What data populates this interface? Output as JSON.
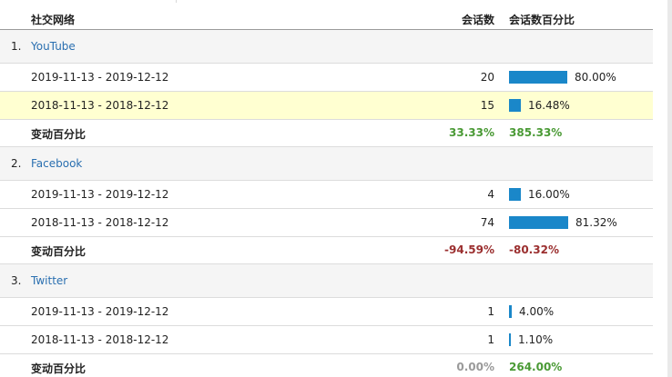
{
  "header": {
    "network": "社交网络",
    "sessions": "会话数",
    "percent": "会话数百分比"
  },
  "colors": {
    "bar": "#1a87c9",
    "link": "#2a6fb0",
    "positive": "#4a9a35",
    "negative": "#9b2f2f",
    "neutral": "#9a9a9a",
    "highlight": "#ffffd1"
  },
  "groups": [
    {
      "index": "1.",
      "name": "YouTube",
      "rows": [
        {
          "date": "2019-11-13 - 2019-12-12",
          "sessions": "20",
          "share": 0.8,
          "pct": "80.00%"
        },
        {
          "date": "2018-11-13 - 2018-12-12",
          "sessions": "15",
          "share": 0.1648,
          "pct": "16.48%"
        }
      ],
      "change": {
        "label": "变动百分比",
        "sessions": "33.33%",
        "sessions_sign": "pos",
        "pct": "385.33%",
        "pct_sign": "pos"
      }
    },
    {
      "index": "2.",
      "name": "Facebook",
      "rows": [
        {
          "date": "2019-11-13 - 2019-12-12",
          "sessions": "4",
          "share": 0.16,
          "pct": "16.00%"
        },
        {
          "date": "2018-11-13 - 2018-12-12",
          "sessions": "74",
          "share": 0.8132,
          "pct": "81.32%"
        }
      ],
      "change": {
        "label": "变动百分比",
        "sessions": "-94.59%",
        "sessions_sign": "neg",
        "pct": "-80.32%",
        "pct_sign": "neg"
      }
    },
    {
      "index": "3.",
      "name": "Twitter",
      "rows": [
        {
          "date": "2019-11-13 - 2019-12-12",
          "sessions": "1",
          "share": 0.04,
          "pct": "4.00%"
        },
        {
          "date": "2018-11-13 - 2018-12-12",
          "sessions": "1",
          "share": 0.011,
          "pct": "1.10%"
        }
      ],
      "change": {
        "label": "变动百分比",
        "sessions": "0.00%",
        "sessions_sign": "zero",
        "pct": "264.00%",
        "pct_sign": "pos"
      }
    }
  ]
}
